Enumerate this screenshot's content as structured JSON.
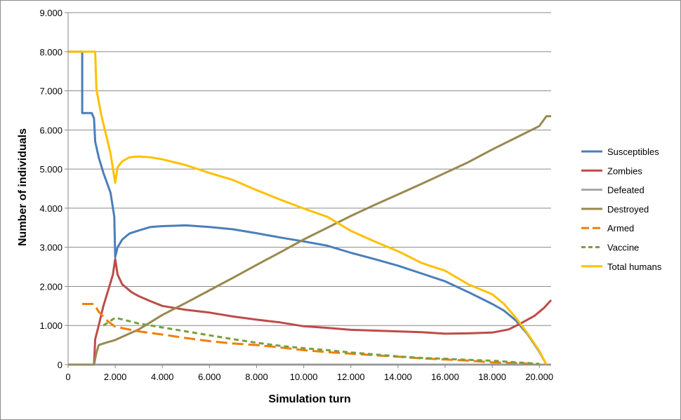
{
  "chart_data": {
    "type": "line",
    "title": "",
    "xlabel": "Simulation turn",
    "ylabel": "Number of individuals",
    "xlim": [
      0,
      20500
    ],
    "ylim": [
      0,
      9000
    ],
    "x_ticks": [
      0,
      2000,
      4000,
      6000,
      8000,
      10000,
      12000,
      14000,
      16000,
      18000,
      20000
    ],
    "x_tick_labels": [
      "0",
      "2.000",
      "4.000",
      "6.000",
      "8.000",
      "10.000",
      "12.000",
      "14.000",
      "16.000",
      "18.000",
      "20.000"
    ],
    "y_ticks": [
      0,
      1000,
      2000,
      3000,
      4000,
      5000,
      6000,
      7000,
      8000,
      9000
    ],
    "y_tick_labels": [
      "0",
      "1.000",
      "2.000",
      "3.000",
      "4.000",
      "5.000",
      "6.000",
      "7.000",
      "8.000",
      "9.000"
    ],
    "grid": "horizontal",
    "legend_position": "right",
    "series": [
      {
        "name": "Susceptibles",
        "color": "#4a7ebb",
        "dash": "solid",
        "points": [
          [
            0,
            8000
          ],
          [
            600,
            8000
          ],
          [
            600,
            6430
          ],
          [
            1000,
            6430
          ],
          [
            1100,
            6300
          ],
          [
            1150,
            5700
          ],
          [
            1300,
            5300
          ],
          [
            1500,
            4900
          ],
          [
            1800,
            4400
          ],
          [
            1960,
            3780
          ],
          [
            2000,
            2750
          ],
          [
            2100,
            3000
          ],
          [
            2300,
            3200
          ],
          [
            2600,
            3350
          ],
          [
            3000,
            3430
          ],
          [
            3500,
            3520
          ],
          [
            4000,
            3540
          ],
          [
            5000,
            3560
          ],
          [
            6000,
            3520
          ],
          [
            7000,
            3460
          ],
          [
            8000,
            3360
          ],
          [
            9000,
            3250
          ],
          [
            10000,
            3150
          ],
          [
            11000,
            3040
          ],
          [
            12000,
            2860
          ],
          [
            13000,
            2700
          ],
          [
            14000,
            2530
          ],
          [
            15000,
            2330
          ],
          [
            16000,
            2130
          ],
          [
            17000,
            1850
          ],
          [
            18000,
            1550
          ],
          [
            18500,
            1380
          ],
          [
            19000,
            1130
          ],
          [
            19500,
            780
          ],
          [
            20000,
            330
          ],
          [
            20300,
            0
          ]
        ]
      },
      {
        "name": "Zombies",
        "color": "#be4b48",
        "dash": "solid",
        "points": [
          [
            0,
            0
          ],
          [
            1100,
            0
          ],
          [
            1150,
            650
          ],
          [
            1300,
            1000
          ],
          [
            1500,
            1500
          ],
          [
            1700,
            1900
          ],
          [
            1900,
            2300
          ],
          [
            2000,
            2700
          ],
          [
            2100,
            2300
          ],
          [
            2300,
            2050
          ],
          [
            2700,
            1850
          ],
          [
            3000,
            1750
          ],
          [
            3500,
            1620
          ],
          [
            4000,
            1500
          ],
          [
            5000,
            1400
          ],
          [
            6000,
            1330
          ],
          [
            7000,
            1230
          ],
          [
            8000,
            1150
          ],
          [
            9000,
            1080
          ],
          [
            10000,
            980
          ],
          [
            11000,
            940
          ],
          [
            12000,
            890
          ],
          [
            13000,
            870
          ],
          [
            14000,
            850
          ],
          [
            15000,
            830
          ],
          [
            16000,
            790
          ],
          [
            17000,
            800
          ],
          [
            18000,
            820
          ],
          [
            18700,
            900
          ],
          [
            19200,
            1050
          ],
          [
            19800,
            1250
          ],
          [
            20200,
            1450
          ],
          [
            20500,
            1650
          ]
        ]
      },
      {
        "name": "Defeated",
        "color": "#a5a5a5",
        "dash": "solid",
        "points": [
          [
            0,
            0
          ],
          [
            20500,
            0
          ]
        ]
      },
      {
        "name": "Destroyed",
        "color": "#98894f",
        "dash": "solid",
        "points": [
          [
            0,
            0
          ],
          [
            1100,
            0
          ],
          [
            1200,
            300
          ],
          [
            1300,
            500
          ],
          [
            1600,
            560
          ],
          [
            2000,
            630
          ],
          [
            3000,
            900
          ],
          [
            4000,
            1270
          ],
          [
            5000,
            1580
          ],
          [
            6000,
            1900
          ],
          [
            7000,
            2220
          ],
          [
            8000,
            2550
          ],
          [
            9000,
            2870
          ],
          [
            10000,
            3200
          ],
          [
            11000,
            3500
          ],
          [
            12000,
            3800
          ],
          [
            13000,
            4080
          ],
          [
            14000,
            4350
          ],
          [
            15000,
            4620
          ],
          [
            16000,
            4900
          ],
          [
            17000,
            5180
          ],
          [
            18000,
            5500
          ],
          [
            19000,
            5800
          ],
          [
            20000,
            6100
          ],
          [
            20300,
            6350
          ],
          [
            20500,
            6350
          ]
        ]
      },
      {
        "name": "Armed",
        "color": "#f07f09",
        "dash": "long",
        "points": [
          [
            600,
            1550
          ],
          [
            1100,
            1550
          ],
          [
            1300,
            1350
          ],
          [
            1700,
            1100
          ],
          [
            2000,
            970
          ],
          [
            3000,
            850
          ],
          [
            4000,
            770
          ],
          [
            5000,
            680
          ],
          [
            6000,
            600
          ],
          [
            7000,
            540
          ],
          [
            8000,
            500
          ],
          [
            9000,
            440
          ],
          [
            10000,
            370
          ],
          [
            11000,
            320
          ],
          [
            12000,
            280
          ],
          [
            13000,
            240
          ],
          [
            14000,
            200
          ],
          [
            15000,
            160
          ],
          [
            16000,
            130
          ],
          [
            17000,
            100
          ],
          [
            18000,
            60
          ],
          [
            19000,
            40
          ],
          [
            20000,
            10
          ]
        ]
      },
      {
        "name": "Vaccine",
        "color": "#77a03d",
        "dash": "short",
        "points": [
          [
            1500,
            1000
          ],
          [
            2000,
            1200
          ],
          [
            3000,
            1050
          ],
          [
            4000,
            950
          ],
          [
            5000,
            850
          ],
          [
            6000,
            750
          ],
          [
            7000,
            650
          ],
          [
            8000,
            560
          ],
          [
            9000,
            480
          ],
          [
            10000,
            420
          ],
          [
            11000,
            370
          ],
          [
            12000,
            310
          ],
          [
            13000,
            260
          ],
          [
            14000,
            210
          ],
          [
            15000,
            170
          ],
          [
            16000,
            150
          ],
          [
            17000,
            120
          ],
          [
            18000,
            100
          ],
          [
            19000,
            60
          ],
          [
            20000,
            20
          ]
        ]
      },
      {
        "name": "Total humans",
        "color": "#ffc000",
        "dash": "solid",
        "points": [
          [
            0,
            8000
          ],
          [
            1150,
            8000
          ],
          [
            1200,
            7050
          ],
          [
            1400,
            6400
          ],
          [
            1600,
            5900
          ],
          [
            1800,
            5400
          ],
          [
            2000,
            4650
          ],
          [
            2100,
            5050
          ],
          [
            2300,
            5200
          ],
          [
            2600,
            5300
          ],
          [
            3000,
            5320
          ],
          [
            3500,
            5300
          ],
          [
            4000,
            5250
          ],
          [
            5000,
            5100
          ],
          [
            6000,
            4900
          ],
          [
            7000,
            4720
          ],
          [
            8000,
            4460
          ],
          [
            9000,
            4220
          ],
          [
            10000,
            3990
          ],
          [
            11000,
            3780
          ],
          [
            12000,
            3420
          ],
          [
            13000,
            3150
          ],
          [
            14000,
            2900
          ],
          [
            15000,
            2600
          ],
          [
            16000,
            2400
          ],
          [
            17000,
            2050
          ],
          [
            18000,
            1800
          ],
          [
            18500,
            1550
          ],
          [
            19000,
            1200
          ],
          [
            19500,
            800
          ],
          [
            20000,
            350
          ],
          [
            20300,
            0
          ]
        ]
      }
    ]
  }
}
